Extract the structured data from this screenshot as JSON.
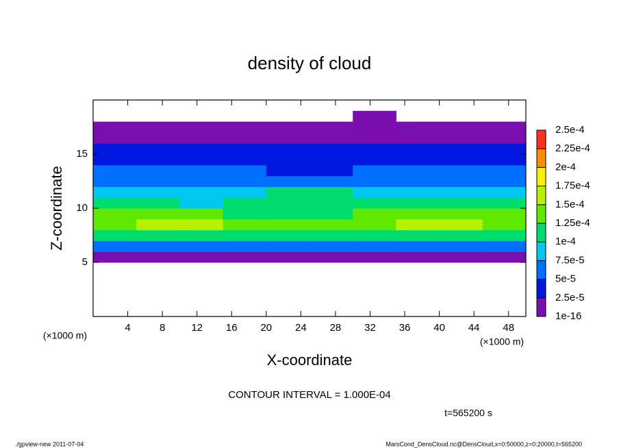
{
  "chart_data": {
    "type": "heatmap",
    "title": "density of cloud",
    "x_label": "X-coordinate",
    "y_label": "Z-coordinate",
    "x_unit": "(×1000 m)",
    "y_unit": "(×1000 m)",
    "contour_note": "CONTOUR INTERVAL = 1.000E-04",
    "time_note": "t=565200 s",
    "footer_left": "./gpview-new  2011-07-04",
    "footer_right": "MarsCond_DensCloud.nc@DensCloud,x=0:50000,z=0:20000,t=565200",
    "xlim": [
      0,
      50
    ],
    "ylim": [
      0,
      20
    ],
    "xticks": [
      4,
      8,
      12,
      16,
      20,
      24,
      28,
      32,
      36,
      40,
      44,
      48
    ],
    "yticks": [
      5,
      10,
      15
    ],
    "xbins": [
      0,
      5,
      10,
      15,
      20,
      25,
      30,
      35,
      40,
      45,
      50
    ],
    "ybins": [
      0,
      1,
      2,
      3,
      4,
      5,
      6,
      7,
      8,
      9,
      10,
      11,
      12,
      13,
      14,
      15,
      16,
      17,
      18,
      19,
      20
    ],
    "z": [
      [
        null,
        null,
        null,
        null,
        null,
        null,
        null,
        null,
        null,
        null
      ],
      [
        null,
        null,
        null,
        null,
        null,
        null,
        null,
        null,
        null,
        null
      ],
      [
        null,
        null,
        null,
        null,
        null,
        null,
        null,
        null,
        null,
        null
      ],
      [
        null,
        null,
        null,
        null,
        null,
        null,
        null,
        null,
        null,
        null
      ],
      [
        null,
        null,
        null,
        null,
        null,
        null,
        null,
        null,
        null,
        null
      ],
      [
        1.5e-05,
        1e-05,
        1e-05,
        1.5e-05,
        2e-05,
        1.5e-05,
        1e-05,
        1.5e-05,
        1e-05,
        1e-05
      ],
      [
        7e-05,
        6e-05,
        7e-05,
        6e-05,
        7e-05,
        6e-05,
        7e-05,
        6e-05,
        7e-05,
        6e-05
      ],
      [
        0.00011,
        0.00012,
        0.00011,
        0.00011,
        0.0001,
        0.00011,
        0.00011,
        0.00012,
        0.00011,
        0.00011
      ],
      [
        0.00014,
        0.00016,
        0.00015,
        0.00013,
        0.00013,
        0.00013,
        0.00014,
        0.00015,
        0.00016,
        0.00014
      ],
      [
        0.00013,
        0.00014,
        0.00013,
        0.00012,
        0.00012,
        0.00012,
        0.00013,
        0.00014,
        0.00014,
        0.00013
      ],
      [
        0.0001,
        0.0001,
        9e-05,
        0.0001,
        0.00011,
        0.00012,
        0.00011,
        0.0001,
        0.0001,
        0.0001
      ],
      [
        8e-05,
        8e-05,
        8e-05,
        9e-05,
        0.0001,
        0.0001,
        9e-05,
        8e-05,
        8e-05,
        8e-05
      ],
      [
        6e-05,
        6e-05,
        6e-05,
        6e-05,
        7e-05,
        7e-05,
        6e-05,
        6e-05,
        6e-05,
        6e-05
      ],
      [
        5e-05,
        5e-05,
        5e-05,
        5e-05,
        4e-05,
        4e-05,
        5e-05,
        5e-05,
        5e-05,
        5e-05
      ],
      [
        4e-05,
        4e-05,
        3e-05,
        4e-05,
        3e-05,
        3e-05,
        4e-05,
        4e-05,
        4e-05,
        4e-05
      ],
      [
        3e-05,
        3e-05,
        3e-05,
        3e-05,
        3e-05,
        3e-05,
        3e-05,
        3e-05,
        3e-05,
        3e-05
      ],
      [
        1.5e-05,
        1.5e-05,
        1e-05,
        1.5e-05,
        1e-05,
        1e-05,
        1.5e-05,
        1.5e-05,
        1.5e-05,
        1.5e-05
      ],
      [
        1e-06,
        1e-06,
        1e-06,
        1e-06,
        1e-06,
        1e-06,
        1e-06,
        1e-06,
        1e-06,
        1e-06
      ],
      [
        null,
        null,
        null,
        null,
        null,
        null,
        1e-06,
        null,
        null,
        null
      ],
      [
        null,
        null,
        null,
        null,
        null,
        null,
        null,
        null,
        null,
        null
      ]
    ],
    "levels": [
      {
        "value": 1e-16,
        "label": "1e-16"
      },
      {
        "value": 2.5e-05,
        "label": "2.5e-5"
      },
      {
        "value": 5e-05,
        "label": "5e-5"
      },
      {
        "value": 7.5e-05,
        "label": "7.5e-5"
      },
      {
        "value": 0.0001,
        "label": "1e-4"
      },
      {
        "value": 0.000125,
        "label": "1.25e-4"
      },
      {
        "value": 0.00015,
        "label": "1.5e-4"
      },
      {
        "value": 0.000175,
        "label": "1.75e-4"
      },
      {
        "value": 0.0002,
        "label": "2e-4"
      },
      {
        "value": 0.000225,
        "label": "2.25e-4"
      },
      {
        "value": 0.00025,
        "label": "2.5e-4"
      }
    ],
    "colors": [
      "#7a0fb0",
      "#0018e0",
      "#0070ff",
      "#00c8f0",
      "#00dc6e",
      "#60e800",
      "#b8f000",
      "#f8f000",
      "#ff8c00",
      "#ff3020"
    ]
  }
}
